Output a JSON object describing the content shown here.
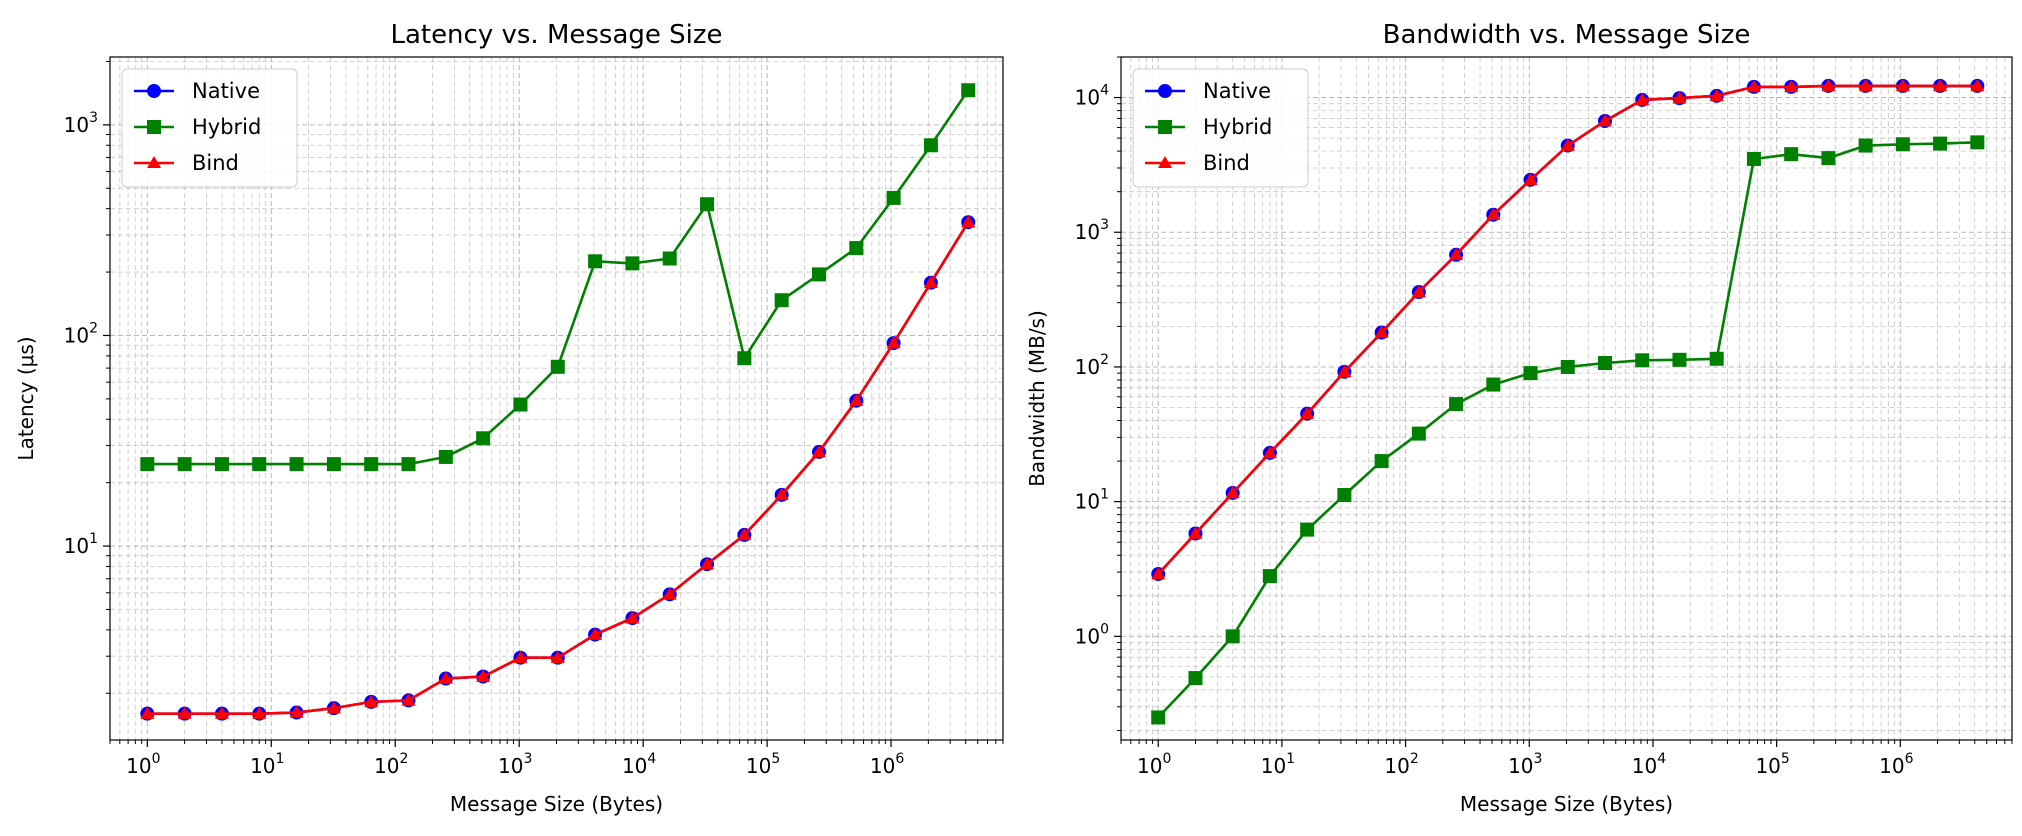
{
  "chart_data": [
    {
      "type": "line",
      "title": "Latency vs. Message Size",
      "xlabel": "Message Size (Bytes)",
      "ylabel": "Latency (μs)",
      "xscale": "log",
      "yscale": "log",
      "xlim": [
        0.5,
        8000000
      ],
      "ylim": [
        1.2,
        2100
      ],
      "grid": true,
      "legend": "upper left",
      "x_ticks": [
        {
          "base": "10",
          "exp": "0",
          "value": 1
        },
        {
          "base": "10",
          "exp": "1",
          "value": 10
        },
        {
          "base": "10",
          "exp": "2",
          "value": 100
        },
        {
          "base": "10",
          "exp": "3",
          "value": 1000
        },
        {
          "base": "10",
          "exp": "4",
          "value": 10000
        },
        {
          "base": "10",
          "exp": "5",
          "value": 100000
        },
        {
          "base": "10",
          "exp": "6",
          "value": 1000000
        }
      ],
      "y_ticks": [
        {
          "base": "10",
          "exp": "1",
          "value": 10
        },
        {
          "base": "10",
          "exp": "2",
          "value": 100
        },
        {
          "base": "10",
          "exp": "3",
          "value": 1000
        }
      ],
      "x": [
        1,
        2,
        4,
        8,
        16,
        32,
        64,
        128,
        256,
        512,
        1024,
        2048,
        4096,
        8192,
        16384,
        32768,
        65536,
        131072,
        262144,
        524288,
        1048576,
        2097152,
        4194304
      ],
      "series": [
        {
          "name": "Native",
          "color": "#0000ff",
          "marker": "circle",
          "values": [
            1.6,
            1.6,
            1.6,
            1.6,
            1.62,
            1.7,
            1.82,
            1.85,
            2.35,
            2.4,
            2.95,
            2.95,
            3.8,
            4.55,
            5.9,
            8.2,
            11.3,
            17.5,
            28,
            49,
            92,
            178,
            345
          ]
        },
        {
          "name": "Hybrid",
          "color": "#008000",
          "marker": "square",
          "values": [
            24.5,
            24.5,
            24.5,
            24.5,
            24.5,
            24.5,
            24.5,
            24.5,
            26.5,
            32.5,
            47,
            71,
            225,
            220,
            232,
            420,
            78,
            147,
            195,
            260,
            450,
            800,
            1460
          ]
        },
        {
          "name": "Bind",
          "color": "#ff0000",
          "marker": "triangle",
          "values": [
            1.6,
            1.6,
            1.6,
            1.6,
            1.62,
            1.7,
            1.82,
            1.85,
            2.35,
            2.4,
            2.95,
            2.95,
            3.8,
            4.55,
            5.9,
            8.2,
            11.3,
            17.5,
            28,
            49,
            92,
            178,
            345
          ]
        }
      ]
    },
    {
      "type": "line",
      "title": "Bandwidth vs. Message Size",
      "xlabel": "Message Size (Bytes)",
      "ylabel": "Bandwidth (MB/s)",
      "xscale": "log",
      "yscale": "log",
      "xlim": [
        0.5,
        8000000
      ],
      "ylim": [
        0.17,
        20000
      ],
      "grid": true,
      "legend": "upper left",
      "x_ticks": [
        {
          "base": "10",
          "exp": "0",
          "value": 1
        },
        {
          "base": "10",
          "exp": "1",
          "value": 10
        },
        {
          "base": "10",
          "exp": "2",
          "value": 100
        },
        {
          "base": "10",
          "exp": "3",
          "value": 1000
        },
        {
          "base": "10",
          "exp": "4",
          "value": 10000
        },
        {
          "base": "10",
          "exp": "5",
          "value": 100000
        },
        {
          "base": "10",
          "exp": "6",
          "value": 1000000
        }
      ],
      "y_ticks": [
        {
          "base": "10",
          "exp": "0",
          "value": 1
        },
        {
          "base": "10",
          "exp": "1",
          "value": 10
        },
        {
          "base": "10",
          "exp": "2",
          "value": 100
        },
        {
          "base": "10",
          "exp": "3",
          "value": 1000
        },
        {
          "base": "10",
          "exp": "4",
          "value": 10000
        }
      ],
      "x": [
        1,
        2,
        4,
        8,
        16,
        32,
        64,
        128,
        256,
        512,
        1024,
        2048,
        4096,
        8192,
        16384,
        32768,
        65536,
        131072,
        262144,
        524288,
        1048576,
        2097152,
        4194304
      ],
      "series": [
        {
          "name": "Native",
          "color": "#0000ff",
          "marker": "circle",
          "values": [
            2.9,
            5.8,
            11.6,
            23,
            45,
            92,
            180,
            360,
            680,
            1350,
            2450,
            4400,
            6700,
            9600,
            9900,
            10300,
            12000,
            12000,
            12200,
            12200,
            12200,
            12200,
            12200
          ]
        },
        {
          "name": "Hybrid",
          "color": "#008000",
          "marker": "square",
          "values": [
            0.25,
            0.49,
            1.0,
            2.8,
            6.2,
            11.2,
            20,
            32,
            53,
            74,
            90,
            100,
            107,
            112,
            113,
            115,
            3500,
            3800,
            3550,
            4400,
            4500,
            4550,
            4650
          ]
        },
        {
          "name": "Bind",
          "color": "#ff0000",
          "marker": "triangle",
          "values": [
            2.9,
            5.8,
            11.6,
            23,
            45,
            92,
            180,
            360,
            680,
            1350,
            2450,
            4400,
            6700,
            9600,
            9900,
            10300,
            12000,
            12000,
            12200,
            12200,
            12200,
            12200,
            12200
          ]
        }
      ]
    }
  ]
}
